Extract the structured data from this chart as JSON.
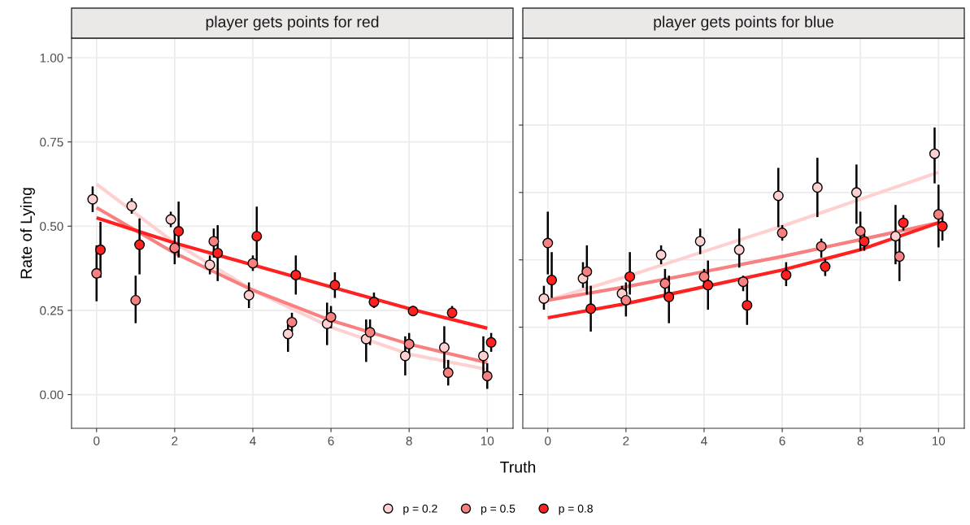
{
  "chart_data": [
    {
      "type": "scatter",
      "title": "player gets points for red",
      "xlabel": "Truth",
      "ylabel": "Rate of Lying",
      "xlim": [
        -0.64,
        10.66
      ],
      "ylim": [
        -0.1,
        1.058
      ],
      "xticks": [
        0,
        2,
        4,
        6,
        8,
        10
      ],
      "yticks": [
        {
          "value": 0,
          "label": "0.00"
        },
        {
          "value": 0.25,
          "label": "0.25"
        },
        {
          "value": 0.5,
          "label": "0.50"
        },
        {
          "value": 0.75,
          "label": "0.75"
        },
        {
          "value": 1,
          "label": "1.00"
        }
      ],
      "grid": true,
      "legend": "bottom",
      "series": [
        {
          "type": "line",
          "color": "#ffd0d0",
          "x": [
            0,
            2,
            4,
            6,
            8,
            10
          ],
          "values": [
            0.625,
            0.45,
            0.31,
            0.2,
            0.12,
            0.075
          ]
        },
        {
          "type": "line",
          "color": "#f88080",
          "x": [
            0,
            2,
            4,
            6,
            8,
            10
          ],
          "values": [
            0.555,
            0.42,
            0.31,
            0.22,
            0.15,
            0.095
          ]
        },
        {
          "type": "line",
          "color": "#ff2020",
          "x": [
            0,
            2,
            4,
            6,
            8,
            10
          ],
          "values": [
            0.525,
            0.45,
            0.385,
            0.32,
            0.255,
            0.197
          ]
        },
        {
          "name": "p = 0.2",
          "marker": "circle",
          "color": "#ffd0d0",
          "x": [
            -0.1,
            0.9,
            1.9,
            2.9,
            3.9,
            4.9,
            5.9,
            6.9,
            7.9,
            8.9,
            9.9
          ],
          "values": [
            0.58,
            0.56,
            0.52,
            0.385,
            0.295,
            0.18,
            0.21,
            0.165,
            0.115,
            0.14,
            0.115
          ],
          "errors": [
            [
              0.545,
              0.615
            ],
            [
              0.54,
              0.58
            ],
            [
              0.5,
              0.54
            ],
            [
              0.36,
              0.41
            ],
            [
              0.26,
              0.33
            ],
            [
              0.13,
              0.22
            ],
            [
              0.15,
              0.27
            ],
            [
              0.1,
              0.22
            ],
            [
              0.06,
              0.17
            ],
            [
              0.08,
              0.2
            ],
            [
              0.06,
              0.17
            ]
          ]
        },
        {
          "name": "p = 0.5",
          "marker": "circle",
          "color": "#f88080",
          "x": [
            0,
            1,
            2,
            3,
            4,
            5,
            6,
            7,
            8,
            9,
            10
          ],
          "values": [
            0.36,
            0.28,
            0.435,
            0.455,
            0.39,
            0.215,
            0.23,
            0.185,
            0.15,
            0.065,
            0.055
          ],
          "errors": [
            [
              0.28,
              0.44
            ],
            [
              0.215,
              0.35
            ],
            [
              0.39,
              0.48
            ],
            [
              0.41,
              0.49
            ],
            [
              0.37,
              0.41
            ],
            [
              0.19,
              0.24
            ],
            [
              0.2,
              0.26
            ],
            [
              0.15,
              0.22
            ],
            [
              0.12,
              0.18
            ],
            [
              0.03,
              0.1
            ],
            [
              0.02,
              0.09
            ]
          ]
        },
        {
          "name": "p = 0.8",
          "marker": "circle",
          "color": "#ff2020",
          "x": [
            0.1,
            1.1,
            2.1,
            3.1,
            4.1,
            5.1,
            6.1,
            7.1,
            8.1,
            9.1,
            10.1
          ],
          "values": [
            0.43,
            0.445,
            0.485,
            0.42,
            0.47,
            0.355,
            0.325,
            0.275,
            0.248,
            0.243,
            0.155
          ],
          "errors": [
            [
              0.35,
              0.51
            ],
            [
              0.36,
              0.52
            ],
            [
              0.41,
              0.57
            ],
            [
              0.34,
              0.5
            ],
            [
              0.4,
              0.555
            ],
            [
              0.3,
              0.41
            ],
            [
              0.29,
              0.36
            ],
            [
              0.26,
              0.3
            ],
            [
              0.24,
              0.26
            ],
            [
              0.235,
              0.26
            ],
            [
              0.13,
              0.18
            ]
          ]
        }
      ]
    },
    {
      "type": "scatter",
      "title": "player gets points for blue",
      "xlim": [
        -0.64,
        10.66
      ],
      "ylim": [
        -0.1,
        1.058
      ],
      "xticks": [
        0,
        2,
        4,
        6,
        8,
        10
      ],
      "grid": true,
      "tick_labels": "x",
      "series": [
        {
          "type": "line",
          "color": "#ffd0d0",
          "x": [
            0,
            2,
            4,
            6,
            8,
            10
          ],
          "values": [
            0.28,
            0.35,
            0.425,
            0.5,
            0.58,
            0.66
          ]
        },
        {
          "type": "line",
          "color": "#f88080",
          "x": [
            0,
            2,
            4,
            6,
            8,
            10
          ],
          "values": [
            0.28,
            0.32,
            0.365,
            0.41,
            0.46,
            0.51
          ]
        },
        {
          "type": "line",
          "color": "#ff2020",
          "x": [
            0,
            2,
            4,
            6,
            8,
            10
          ],
          "values": [
            0.228,
            0.27,
            0.32,
            0.37,
            0.43,
            0.51
          ]
        },
        {
          "marker": "circle",
          "color": "#ffd0d0",
          "x": [
            -0.1,
            0.9,
            1.9,
            2.9,
            3.9,
            4.9,
            5.9,
            6.9,
            7.9,
            8.9,
            9.9
          ],
          "values": [
            0.285,
            0.345,
            0.3,
            0.415,
            0.455,
            0.43,
            0.59,
            0.615,
            0.6,
            0.47,
            0.715
          ],
          "errors": [
            [
              0.255,
              0.32
            ],
            [
              0.32,
              0.39
            ],
            [
              0.28,
              0.32
            ],
            [
              0.39,
              0.44
            ],
            [
              0.42,
              0.49
            ],
            [
              0.38,
              0.49
            ],
            [
              0.5,
              0.67
            ],
            [
              0.53,
              0.7
            ],
            [
              0.51,
              0.68
            ],
            [
              0.39,
              0.56
            ],
            [
              0.63,
              0.79
            ]
          ]
        },
        {
          "marker": "circle",
          "color": "#f88080",
          "x": [
            0,
            1,
            2,
            3,
            4,
            5,
            6,
            7,
            8,
            9,
            10
          ],
          "values": [
            0.45,
            0.365,
            0.28,
            0.33,
            0.35,
            0.335,
            0.48,
            0.44,
            0.485,
            0.41,
            0.535
          ],
          "errors": [
            [
              0.36,
              0.54
            ],
            [
              0.3,
              0.44
            ],
            [
              0.235,
              0.33
            ],
            [
              0.29,
              0.37
            ],
            [
              0.32,
              0.37
            ],
            [
              0.31,
              0.35
            ],
            [
              0.46,
              0.5
            ],
            [
              0.41,
              0.46
            ],
            [
              0.43,
              0.54
            ],
            [
              0.34,
              0.46
            ],
            [
              0.44,
              0.62
            ]
          ]
        },
        {
          "marker": "circle",
          "color": "#ff2020",
          "x": [
            0.1,
            1.1,
            2.1,
            3.1,
            4.1,
            5.1,
            6.1,
            7.1,
            8.1,
            9.1,
            10.1
          ],
          "values": [
            0.34,
            0.255,
            0.35,
            0.29,
            0.325,
            0.265,
            0.355,
            0.38,
            0.455,
            0.51,
            0.5
          ],
          "errors": [
            [
              0.29,
              0.42
            ],
            [
              0.19,
              0.32
            ],
            [
              0.3,
              0.42
            ],
            [
              0.215,
              0.35
            ],
            [
              0.255,
              0.395
            ],
            [
              0.21,
              0.33
            ],
            [
              0.325,
              0.39
            ],
            [
              0.355,
              0.4
            ],
            [
              0.43,
              0.475
            ],
            [
              0.49,
              0.53
            ],
            [
              0.46,
              0.53
            ]
          ]
        }
      ]
    }
  ]
}
